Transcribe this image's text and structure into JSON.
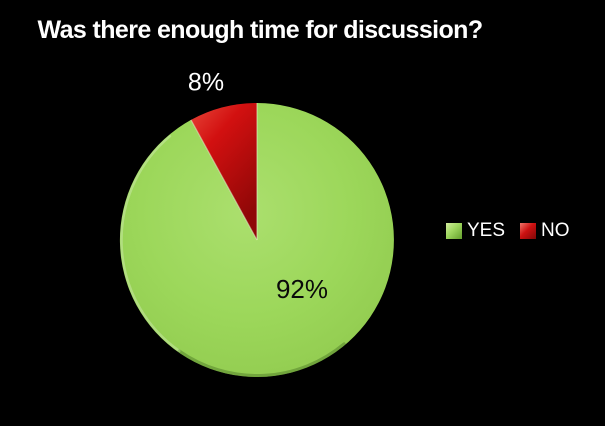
{
  "page": {
    "background": "#000000"
  },
  "chart_data": {
    "type": "pie",
    "title": "Was there enough time for discussion?",
    "categories": [
      "YES",
      "NO"
    ],
    "values": [
      92,
      8
    ],
    "data_labels": [
      "92%",
      "8%"
    ],
    "colors": [
      "#9cd75a",
      "#d21010"
    ],
    "data_label_colors": [
      "#0a0a0a",
      "#ffffff"
    ],
    "title_color": "#ffffff",
    "legend_text_color": "#ffffff",
    "legend_position": "right",
    "start_angle_deg": 0,
    "direction": "clockwise",
    "background": "#000000"
  }
}
